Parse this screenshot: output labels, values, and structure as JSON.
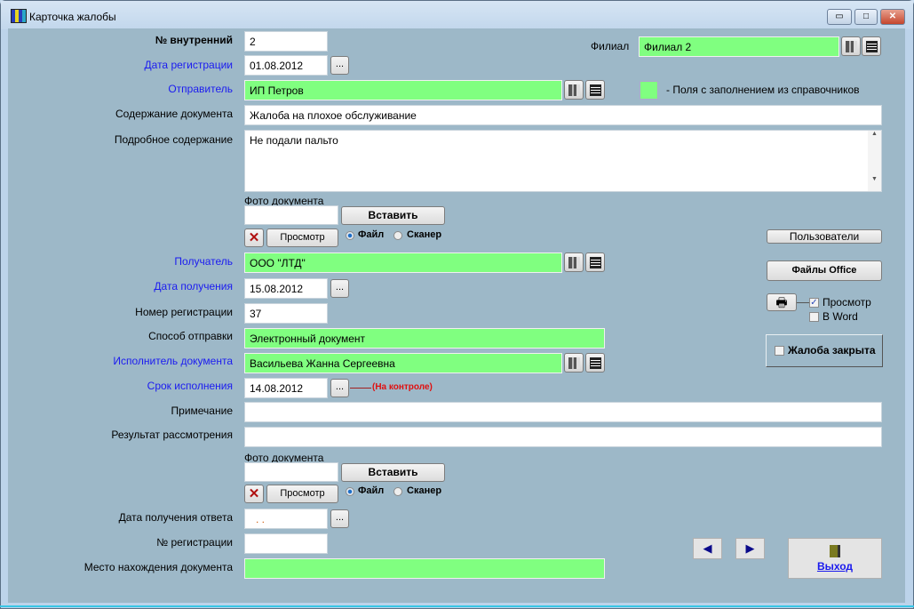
{
  "window": {
    "title": "Карточка жалобы",
    "minimize": "▭",
    "maximize": "□",
    "close": "✕"
  },
  "legend": {
    "text": "-  Поля с заполнением из справочников",
    "color": "#80ff80"
  },
  "fields": {
    "internal_no": {
      "label": "№ внутренний",
      "value": "2"
    },
    "reg_date": {
      "label": "Дата регистрации",
      "value": "01.08.2012"
    },
    "sender": {
      "label": "Отправитель",
      "value": "ИП Петров"
    },
    "branch": {
      "label": "Филиал",
      "value": "Филиал 2"
    },
    "content": {
      "label": "Содержание документа",
      "value": "Жалоба на плохое обслуживание"
    },
    "details": {
      "label": "Подробное содержание",
      "value": "Не подали пальто"
    },
    "recipient": {
      "label": "Получатель",
      "value": "ООО \"ЛТД\""
    },
    "receipt_date": {
      "label": "Дата получения",
      "value": "15.08.2012"
    },
    "reg_number": {
      "label": "Номер регистрации",
      "value": "37"
    },
    "send_method": {
      "label": "Способ отправки",
      "value": "Электронный документ"
    },
    "executor": {
      "label": "Исполнитель документа",
      "value": "Васильева Жанна Сергеевна"
    },
    "deadline": {
      "label": "Срок исполнения",
      "value": "14.08.2012",
      "note": "(На контроле)"
    },
    "note": {
      "label": "Примечание",
      "value": ""
    },
    "result": {
      "label": "Результат рассмотрения",
      "value": ""
    },
    "answer_date": {
      "label": "Дата получения ответа",
      "value": ". ."
    },
    "answer_reg": {
      "label": "№ регистрации",
      "value": ""
    },
    "location": {
      "label": "Место нахождения документа",
      "value": ""
    }
  },
  "photo": {
    "label": "Фото документа",
    "insert": "Вставить",
    "view": "Просмотр",
    "file": "Файл",
    "scanner": "Сканер",
    "selected": "Файл"
  },
  "date_button": "...",
  "side": {
    "users": "Пользователи",
    "office": "Файлы Office",
    "print_preview": "Просмотр",
    "print_preview_checked": true,
    "in_word": "В Word",
    "in_word_checked": false,
    "closed": "Жалоба закрыта",
    "closed_checked": false
  },
  "footer": {
    "exit": "Выход",
    "prev": "◀",
    "next": "▶"
  }
}
